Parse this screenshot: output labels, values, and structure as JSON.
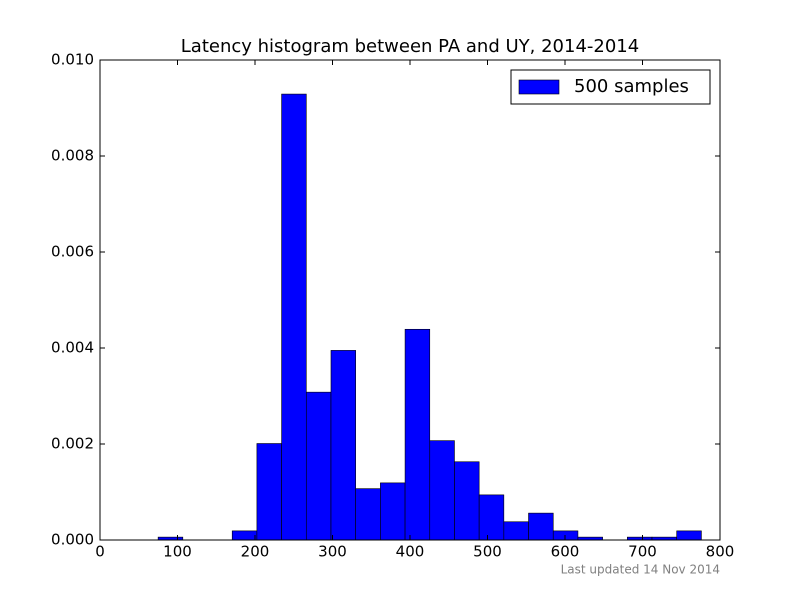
{
  "chart_data": {
    "type": "histogram",
    "title": "Latency histogram between PA and UY, 2014-2014",
    "bins": [
      75,
      106.86,
      138.73,
      170.59,
      202.45,
      234.32,
      266.18,
      298.05,
      329.91,
      361.77,
      393.64,
      425.5,
      457.36,
      489.23,
      521.09,
      552.95,
      584.82,
      616.68,
      648.55,
      680.41,
      712.27,
      744.14,
      776
    ],
    "series": [
      {
        "name": "500 samples",
        "color": "#0000ff",
        "values": [
          6e-05,
          0,
          0,
          0.00019,
          0.00201,
          0.00929,
          0.00308,
          0.00395,
          0.00107,
          0.00119,
          0.00439,
          0.00207,
          0.00163,
          0.00094,
          0.00038,
          0.00056,
          0.00019,
          6e-05,
          0,
          6e-05,
          6e-05,
          0.00019
        ]
      }
    ],
    "xlim": [
      0,
      800
    ],
    "xticks": [
      0,
      100,
      200,
      300,
      400,
      500,
      600,
      700,
      800
    ],
    "ylim": [
      0,
      0.01
    ],
    "yticks": [
      {
        "value": 0,
        "label": "0.000"
      },
      {
        "value": 0.002,
        "label": "0.002"
      },
      {
        "value": 0.004,
        "label": "0.004"
      },
      {
        "value": 0.006,
        "label": "0.006"
      },
      {
        "value": 0.008,
        "label": "0.008"
      },
      {
        "value": 0.01,
        "label": "0.010"
      }
    ],
    "legend": "upper right",
    "annotation": "Last updated 14 Nov 2014"
  }
}
